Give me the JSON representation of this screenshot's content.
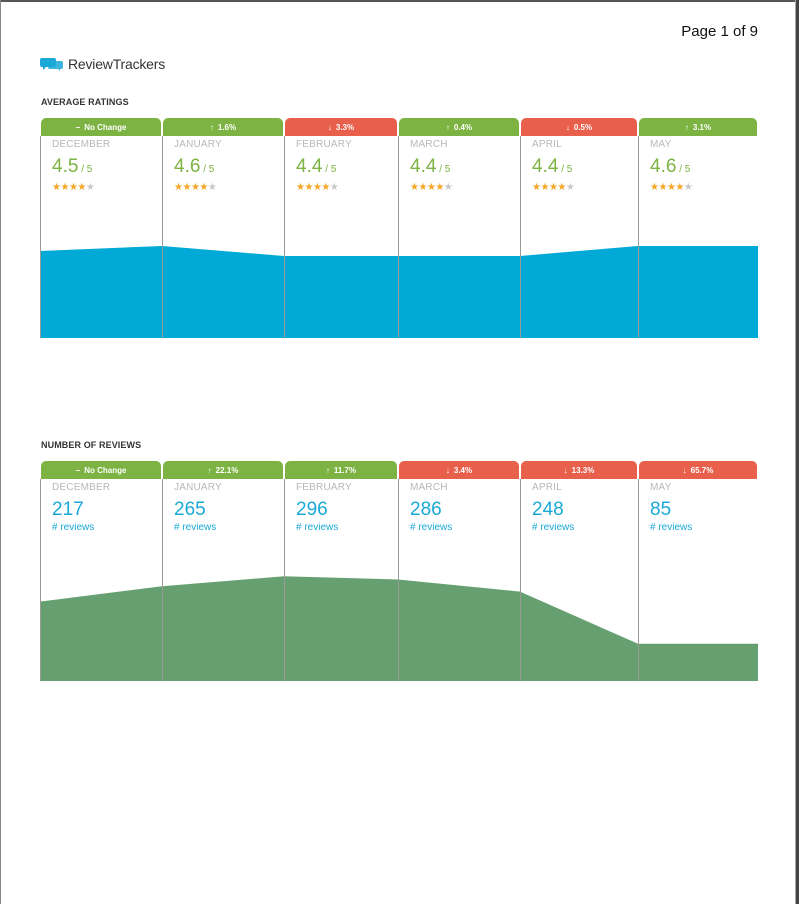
{
  "page_label": "Page 1 of 9",
  "brand": {
    "name": "ReviewTrackers",
    "brand_color": "#1aa9d6"
  },
  "colors": {
    "up": "#7cb342",
    "down": "#e8604c",
    "rating_area": "#00a9d6",
    "reviews_area": "#66a070"
  },
  "ratings_section": {
    "title": "AVERAGE RATINGS",
    "scale_suffix": "/ 5",
    "items": [
      {
        "month": "DECEMBER",
        "value": "4.5",
        "change": "No Change",
        "direction": "flat",
        "stars": 4
      },
      {
        "month": "JANUARY",
        "value": "4.6",
        "change": "1.6%",
        "direction": "up",
        "stars": 4
      },
      {
        "month": "FEBRUARY",
        "value": "4.4",
        "change": "3.3%",
        "direction": "down",
        "stars": 4
      },
      {
        "month": "MARCH",
        "value": "4.4",
        "change": "0.4%",
        "direction": "up",
        "stars": 4
      },
      {
        "month": "APRIL",
        "value": "4.4",
        "change": "0.5%",
        "direction": "down",
        "stars": 4
      },
      {
        "month": "MAY",
        "value": "4.6",
        "change": "3.1%",
        "direction": "up",
        "stars": 4
      }
    ]
  },
  "reviews_section": {
    "title": "NUMBER OF REVIEWS",
    "count_label": "# reviews",
    "items": [
      {
        "month": "DECEMBER",
        "value": "217",
        "change": "No Change",
        "direction": "flat"
      },
      {
        "month": "JANUARY",
        "value": "265",
        "change": "22.1%",
        "direction": "up"
      },
      {
        "month": "FEBRUARY",
        "value": "296",
        "change": "11.7%",
        "direction": "up"
      },
      {
        "month": "MARCH",
        "value": "286",
        "change": "3.4%",
        "direction": "down"
      },
      {
        "month": "APRIL",
        "value": "248",
        "change": "13.3%",
        "direction": "down"
      },
      {
        "month": "MAY",
        "value": "85",
        "change": "65.7%",
        "direction": "down"
      }
    ]
  }
}
